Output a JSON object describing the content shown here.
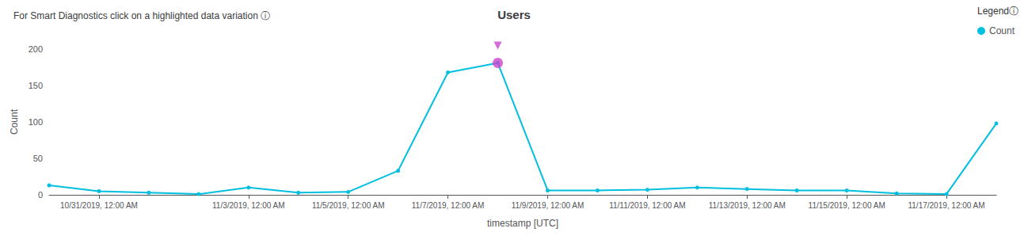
{
  "chart_data": {
    "type": "line",
    "title": "Users",
    "subtitle": "For Smart Diagnostics click on a highlighted data variation",
    "subtitle_icon": "ⓘ",
    "xlabel": "timestamp [UTC]",
    "ylabel": "Count",
    "categories": [
      null,
      "10/31/2019, 12:00 AM",
      null,
      null,
      "11/3/2019, 12:00 AM",
      null,
      "11/5/2019, 12:00 AM",
      null,
      "11/7/2019, 12:00 AM",
      null,
      "11/9/2019, 12:00 AM",
      null,
      "11/11/2019, 12:00 AM",
      null,
      "11/13/2019, 12:00 AM",
      null,
      "11/15/2019, 12:00 AM",
      null,
      "11/17/2019, 12:00 AM",
      null
    ],
    "series": [
      {
        "name": "Count",
        "color": "#00BFDF",
        "marker": "circle",
        "values": [
          13,
          5,
          3,
          1,
          10,
          3,
          4,
          33,
          168,
          181,
          6,
          6,
          7,
          10,
          8,
          6,
          6,
          2,
          1,
          98
        ]
      }
    ],
    "highlight": {
      "index": 9,
      "color": "#CC44CC"
    },
    "ylim": [
      0,
      200
    ],
    "yticks": [
      0,
      50,
      100,
      150,
      200
    ],
    "grid": false,
    "legend": "upper right",
    "legend_title": "Legendⓘ"
  }
}
